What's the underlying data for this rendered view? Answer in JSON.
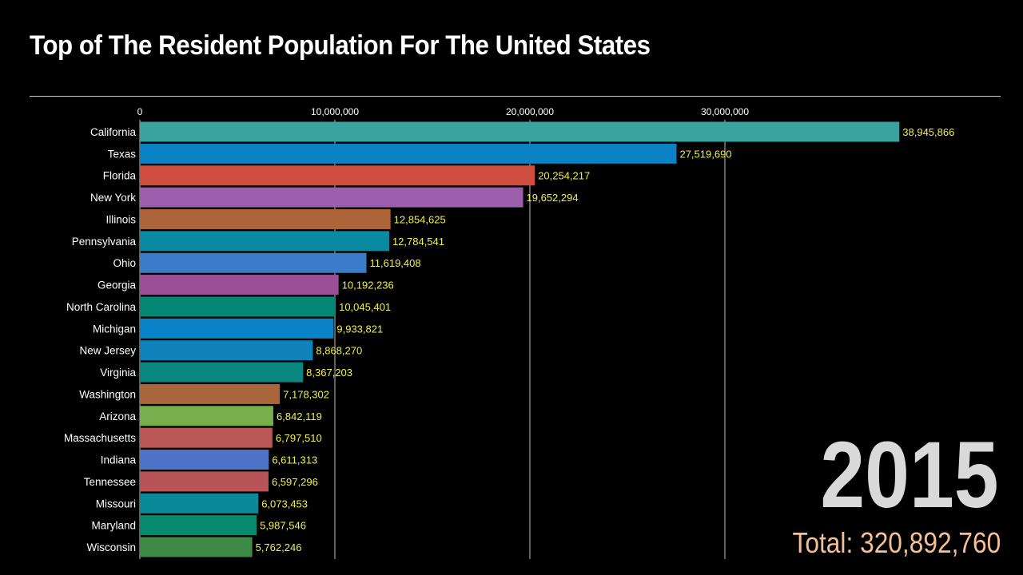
{
  "chart_data": {
    "type": "bar",
    "orientation": "horizontal",
    "title": "Top of The Resident Population For The United States",
    "xlim": [
      0,
      40000000
    ],
    "x_ticks": [
      0,
      10000000,
      20000000,
      30000000
    ],
    "x_tick_labels": [
      "0",
      "10,000,000",
      "20,000,000",
      "30,000,000"
    ],
    "grid": true,
    "categories": [
      "California",
      "Texas",
      "Florida",
      "New York",
      "Illinois",
      "Pennsylvania",
      "Ohio",
      "Georgia",
      "North Carolina",
      "Michigan",
      "New Jersey",
      "Virginia",
      "Washington",
      "Arizona",
      "Massachusetts",
      "Indiana",
      "Tennessee",
      "Missouri",
      "Maryland",
      "Wisconsin"
    ],
    "values": [
      38945866,
      27519690,
      20254217,
      19652294,
      12854625,
      12784541,
      11619408,
      10192236,
      10045401,
      9933821,
      8868270,
      8367203,
      7178302,
      6842119,
      6797510,
      6611313,
      6597296,
      6073453,
      5987546,
      5762246
    ],
    "value_labels": [
      "38,945,866",
      "27,519,690",
      "20,254,217",
      "19,652,294",
      "12,854,625",
      "12,784,541",
      "11,619,408",
      "10,192,236",
      "10,045,401",
      "9,933,821",
      "8,868,270",
      "8,367,203",
      "7,178,302",
      "6,842,119",
      "6,797,510",
      "6,611,313",
      "6,597,296",
      "6,073,453",
      "5,987,546",
      "5,762,246"
    ],
    "colors": [
      "#3aa39f",
      "#0a82c4",
      "#cf4e40",
      "#9b5fae",
      "#ad6439",
      "#088aa1",
      "#3a7cc8",
      "#9a4f97",
      "#048774",
      "#0a82c8",
      "#0f81bb",
      "#0b8781",
      "#a9663a",
      "#77b04a",
      "#b85754",
      "#4f73c9",
      "#b85458",
      "#0a8a99",
      "#068a6c",
      "#3d8a47"
    ],
    "value_label_color": "#f0f04a",
    "year": "2015",
    "total": "Total: 320,892,760"
  }
}
